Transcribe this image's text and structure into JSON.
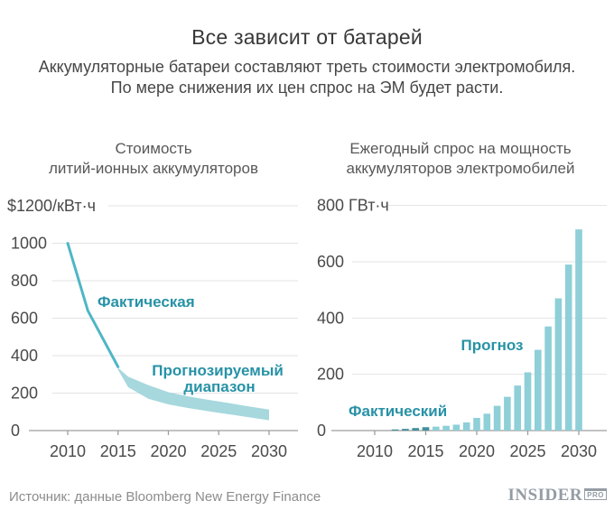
{
  "header": {
    "title": "Все зависит от батарей",
    "subtitle_line1": "Аккумуляторные батареи составляют треть стоимости электромобиля.",
    "subtitle_line2": "По мере снижения их цен спрос на ЭМ будет расти."
  },
  "footer": {
    "source": "Источник: данные Bloomberg New Energy Finance",
    "logo_main": "INSIDER",
    "logo_badge": "PRO"
  },
  "colors": {
    "grid": "#e3e3e3",
    "axis": "#9e9e9e",
    "accent_text": "#2792a6",
    "line": "#4fb6c5",
    "band": "#a6d8de",
    "bar_actual": "#41909c",
    "bar_forecast": "#8ecfd8"
  },
  "chart_data": [
    {
      "type": "line",
      "title_lines": [
        "Стоимость",
        "литий-ионных аккумуляторов"
      ],
      "unit_label": "$1200/кВт·ч",
      "unit_value": 1200,
      "ylim": [
        0,
        1200
      ],
      "xlim": [
        2010,
        2030
      ],
      "grid": true,
      "yticks": [
        1000,
        800,
        600,
        400,
        200,
        0
      ],
      "xticks": [
        2010,
        2015,
        2020,
        2025,
        2030
      ],
      "series": [
        {
          "name": "Фактическая",
          "kind": "line",
          "points": [
            [
              2010,
              1000
            ],
            [
              2012,
              640
            ],
            [
              2013,
              540
            ],
            [
              2015,
              340
            ]
          ]
        },
        {
          "name": "Прогнозируемый диапазон",
          "kind": "band",
          "x": [
            2015,
            2016,
            2018,
            2020,
            2022,
            2024,
            2026,
            2028,
            2030
          ],
          "top": [
            335,
            288,
            243,
            205,
            182,
            164,
            147,
            129,
            112
          ],
          "bottom": [
            325,
            232,
            170,
            140,
            120,
            103,
            87,
            71,
            55
          ]
        }
      ],
      "annotations": [
        {
          "text": "Фактическая",
          "x": 108,
          "y": 340,
          "anchor": "start"
        },
        {
          "text": "Прогнозируемый",
          "x": 241,
          "y": 416,
          "anchor": "middle"
        },
        {
          "text": "диапазон",
          "x": 243,
          "y": 434,
          "anchor": "middle"
        }
      ]
    },
    {
      "type": "bar",
      "title_lines": [
        "Ежегодный спрос на мощность",
        "аккумуляторов электромобилей"
      ],
      "unit_label": "800 ГВт·ч",
      "unit_value": 800,
      "ylim": [
        0,
        800
      ],
      "xlim": [
        2010,
        2030
      ],
      "grid": true,
      "yticks": [
        600,
        400,
        200,
        0
      ],
      "xticks": [
        2010,
        2015,
        2020,
        2025,
        2030
      ],
      "series": [
        {
          "name": "Фактический",
          "kind": "bars",
          "years": [
            2012,
            2013,
            2014,
            2015
          ],
          "values": [
            4,
            6,
            9,
            12
          ]
        },
        {
          "name": "Прогноз",
          "kind": "bars",
          "years": [
            2016,
            2017,
            2018,
            2019,
            2020,
            2021,
            2022,
            2023,
            2024,
            2025,
            2026,
            2027,
            2028,
            2029,
            2030
          ],
          "values": [
            14,
            17,
            21,
            29,
            45,
            60,
            88,
            120,
            160,
            207,
            287,
            370,
            470,
            590,
            715
          ]
        }
      ],
      "annotations": [
        {
          "text": "Фактический",
          "x": 386,
          "y": 461,
          "anchor": "start"
        },
        {
          "text": "Прогноз",
          "x": 545,
          "y": 388,
          "anchor": "middle"
        }
      ]
    }
  ]
}
